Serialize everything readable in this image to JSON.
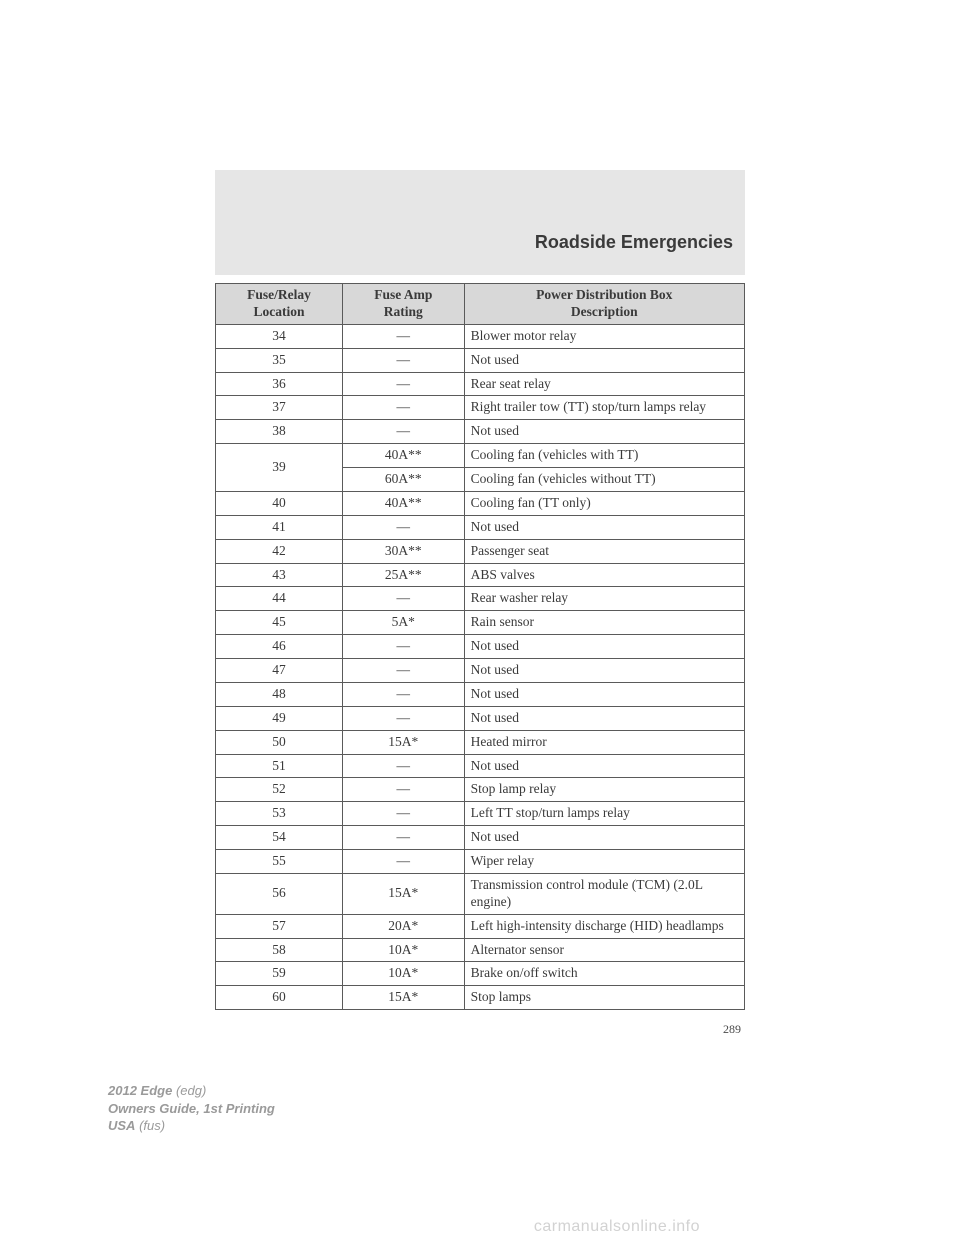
{
  "header": {
    "section_title": "Roadside Emergencies"
  },
  "table": {
    "columns": [
      "Fuse/Relay\nLocation",
      "Fuse Amp\nRating",
      "Power Distribution Box\nDescription"
    ],
    "rows": [
      [
        "34",
        "—",
        "Blower motor relay"
      ],
      [
        "35",
        "—",
        "Not used"
      ],
      [
        "36",
        "—",
        "Rear seat relay"
      ],
      [
        "37",
        "—",
        "Right trailer tow (TT) stop/turn lamps relay"
      ],
      [
        "38",
        "—",
        "Not used"
      ],
      [
        "39",
        "40A**",
        "Cooling fan (vehicles with TT)"
      ],
      [
        "",
        "60A**",
        "Cooling fan (vehicles without TT)"
      ],
      [
        "40",
        "40A**",
        "Cooling fan (TT only)"
      ],
      [
        "41",
        "—",
        "Not used"
      ],
      [
        "42",
        "30A**",
        "Passenger seat"
      ],
      [
        "43",
        "25A**",
        "ABS valves"
      ],
      [
        "44",
        "—",
        "Rear washer relay"
      ],
      [
        "45",
        "5A*",
        "Rain sensor"
      ],
      [
        "46",
        "—",
        "Not used"
      ],
      [
        "47",
        "—",
        "Not used"
      ],
      [
        "48",
        "—",
        "Not used"
      ],
      [
        "49",
        "—",
        "Not used"
      ],
      [
        "50",
        "15A*",
        "Heated mirror"
      ],
      [
        "51",
        "—",
        "Not used"
      ],
      [
        "52",
        "—",
        "Stop lamp relay"
      ],
      [
        "53",
        "—",
        "Left TT stop/turn lamps relay"
      ],
      [
        "54",
        "—",
        "Not used"
      ],
      [
        "55",
        "—",
        "Wiper relay"
      ],
      [
        "56",
        "15A*",
        "Transmission control module (TCM) (2.0L engine)"
      ],
      [
        "57",
        "20A*",
        "Left high-intensity discharge (HID) headlamps"
      ],
      [
        "58",
        "10A*",
        "Alternator sensor"
      ],
      [
        "59",
        "10A*",
        "Brake on/off switch"
      ],
      [
        "60",
        "15A*",
        "Stop lamps"
      ]
    ],
    "merged_loc_rows": [
      [
        5,
        6
      ]
    ]
  },
  "page_number": "289",
  "footer": {
    "line1_bold": "2012 Edge",
    "line1_rest": " (edg)",
    "line2": "Owners Guide, 1st Printing",
    "line3_bold": "USA",
    "line3_rest": " (fus)"
  },
  "watermark": "carmanualsonline.info",
  "colors": {
    "header_bg": "#e6e6e6",
    "th_bg": "#d8d8d8",
    "border": "#5a5a5a",
    "text": "#3a3a3a",
    "footer_text": "#9a9a9a",
    "watermark": "#d2d2d2"
  }
}
